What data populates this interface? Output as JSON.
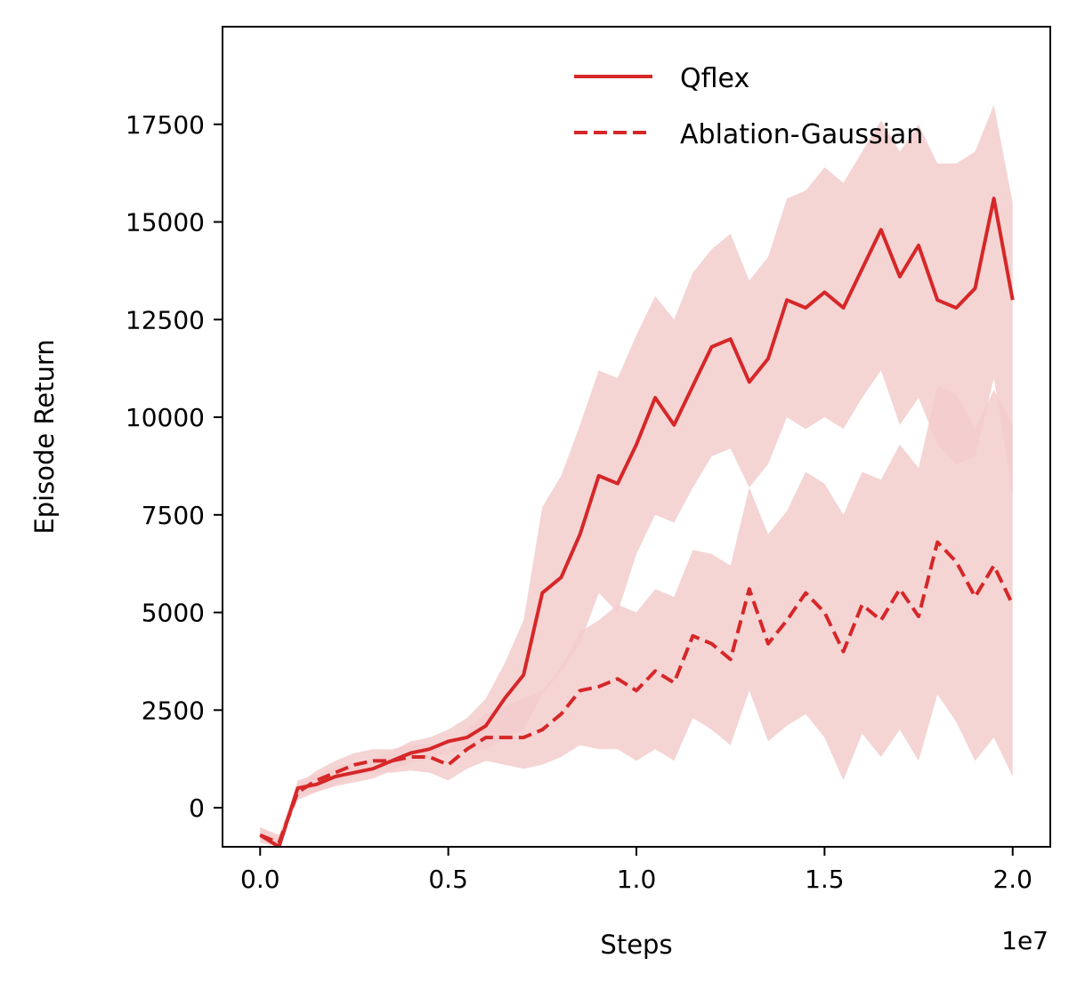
{
  "chart_data": {
    "type": "line",
    "xlabel": "Steps",
    "ylabel": "Episode Return",
    "x_offset_label": "1e7",
    "xlim": [
      -0.1,
      2.1
    ],
    "ylim": [
      -1000,
      20000
    ],
    "x_scale": 10000000,
    "xticks": [
      0.0,
      0.5,
      1.0,
      1.5,
      2.0
    ],
    "xtick_labels": [
      "0.0",
      "0.5",
      "1.0",
      "1.5",
      "2.0"
    ],
    "yticks": [
      0,
      2500,
      5000,
      7500,
      10000,
      12500,
      15000,
      17500
    ],
    "ytick_labels": [
      "0",
      "2500",
      "5000",
      "7500",
      "10000",
      "12500",
      "15000",
      "17500"
    ],
    "grid": false,
    "legend_position": "top-right",
    "colors": {
      "series": "#d62728",
      "band": "#f3cccd"
    },
    "series": [
      {
        "name": "Qflex",
        "linestyle": "solid",
        "x": [
          0.0,
          0.05,
          0.1,
          0.15,
          0.2,
          0.25,
          0.3,
          0.35,
          0.4,
          0.45,
          0.5,
          0.55,
          0.6,
          0.65,
          0.7,
          0.75,
          0.8,
          0.85,
          0.9,
          0.95,
          1.0,
          1.05,
          1.1,
          1.15,
          1.2,
          1.25,
          1.3,
          1.35,
          1.4,
          1.45,
          1.5,
          1.55,
          1.6,
          1.65,
          1.7,
          1.75,
          1.8,
          1.85,
          1.9,
          1.95,
          2.0
        ],
        "values": [
          -700,
          -1000,
          500,
          600,
          800,
          900,
          1000,
          1200,
          1400,
          1500,
          1700,
          1800,
          2100,
          2800,
          3400,
          5500,
          5900,
          7000,
          8500,
          8300,
          9300,
          10500,
          9800,
          10800,
          11800,
          12000,
          10900,
          11500,
          13000,
          12800,
          13200,
          12800,
          13800,
          14800,
          13600,
          14400,
          13000,
          12800,
          13300,
          15600,
          13000
        ],
        "lower": [
          -800,
          -1000,
          300,
          400,
          550,
          650,
          750,
          950,
          1150,
          1250,
          1400,
          1450,
          1500,
          1800,
          2000,
          2900,
          3500,
          4200,
          5500,
          5000,
          6500,
          7500,
          7300,
          8200,
          9000,
          9200,
          8200,
          8800,
          10000,
          9700,
          10000,
          9700,
          10500,
          11200,
          9800,
          10500,
          9300,
          8800,
          9000,
          11000,
          8000
        ],
        "upper": [
          -500,
          -800,
          700,
          850,
          1050,
          1150,
          1250,
          1450,
          1700,
          1800,
          2000,
          2300,
          2800,
          3700,
          4800,
          7700,
          8500,
          9800,
          11200,
          11000,
          12100,
          13100,
          12500,
          13700,
          14300,
          14700,
          13500,
          14100,
          15600,
          15800,
          16400,
          16000,
          16800,
          17600,
          16800,
          17500,
          16500,
          16500,
          16800,
          18000,
          15500
        ]
      },
      {
        "name": "Ablation-Gaussian",
        "linestyle": "dashed",
        "x": [
          0.0,
          0.05,
          0.1,
          0.15,
          0.2,
          0.25,
          0.3,
          0.35,
          0.4,
          0.45,
          0.5,
          0.55,
          0.6,
          0.65,
          0.7,
          0.75,
          0.8,
          0.85,
          0.9,
          0.95,
          1.0,
          1.05,
          1.1,
          1.15,
          1.2,
          1.25,
          1.3,
          1.35,
          1.4,
          1.45,
          1.5,
          1.55,
          1.6,
          1.65,
          1.7,
          1.75,
          1.8,
          1.85,
          1.9,
          1.95,
          2.0
        ],
        "values": [
          -700,
          -900,
          400,
          700,
          900,
          1100,
          1200,
          1200,
          1300,
          1300,
          1100,
          1500,
          1800,
          1800,
          1800,
          2000,
          2400,
          3000,
          3100,
          3300,
          3000,
          3500,
          3200,
          4400,
          4200,
          3800,
          5600,
          4200,
          4800,
          5500,
          5000,
          4000,
          5200,
          4800,
          5600,
          4900,
          6800,
          6300,
          5400,
          6200,
          5200
        ],
        "lower": [
          -900,
          -1000,
          200,
          400,
          600,
          800,
          900,
          900,
          950,
          900,
          700,
          1000,
          1200,
          1100,
          1000,
          1100,
          1300,
          1600,
          1500,
          1500,
          1200,
          1500,
          1200,
          2300,
          2000,
          1600,
          3000,
          1700,
          2100,
          2400,
          1800,
          700,
          1900,
          1300,
          2000,
          1200,
          2900,
          2200,
          1200,
          1800,
          800
        ],
        "upper": [
          -500,
          -700,
          600,
          950,
          1200,
          1400,
          1500,
          1500,
          1600,
          1650,
          1500,
          2000,
          2400,
          2600,
          2800,
          3000,
          3600,
          4500,
          4800,
          5200,
          5000,
          5600,
          5400,
          6600,
          6500,
          6200,
          8200,
          7000,
          7600,
          8600,
          8300,
          7500,
          8600,
          8400,
          9300,
          8700,
          10800,
          10600,
          9700,
          10700,
          9800
        ]
      }
    ]
  }
}
